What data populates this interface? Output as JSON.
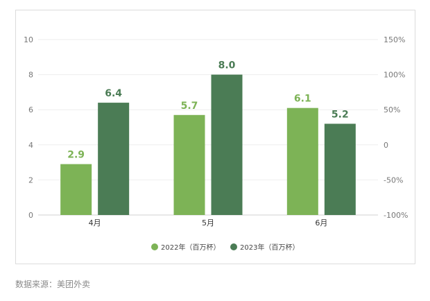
{
  "chart_data": {
    "type": "bar",
    "categories": [
      "4月",
      "5月",
      "6月"
    ],
    "series": [
      {
        "name": "2022年（百万杯）",
        "values": [
          2.9,
          5.7,
          6.1
        ],
        "color": "#7db356"
      },
      {
        "name": "2023年（百万杯）",
        "values": [
          6.4,
          8.0,
          5.2
        ],
        "color": "#4b7c55"
      }
    ],
    "ylim": [
      0,
      10
    ],
    "yticks": [
      "0",
      "2",
      "4",
      "6",
      "8",
      "10"
    ],
    "ylim_right": [
      -100,
      150
    ],
    "yticks_right": [
      "-100%",
      "-50%",
      "0",
      "50%",
      "100%",
      "150%"
    ],
    "grid": true,
    "legend_position": "bottom"
  },
  "source_text": "数据来源：美团外卖"
}
